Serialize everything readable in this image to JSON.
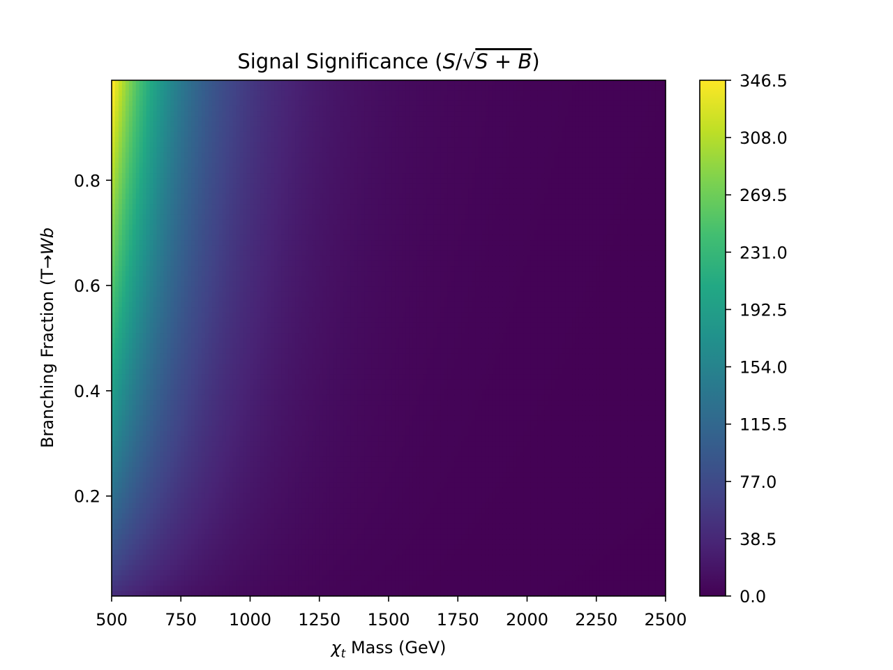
{
  "chart_data": {
    "type": "heatmap",
    "title": "Signal Significance (S/√S + B)",
    "title_parts": {
      "prefix": "Signal Significance (",
      "italic1": "S",
      "slash": "/√",
      "italic2": "S + B",
      "suffix": ")"
    },
    "xlabel": "χt Mass (GeV)",
    "xlabel_parts": {
      "symbol": "χ",
      "subscript": "t",
      "rest": " Mass (GeV)"
    },
    "ylabel": "Branching Fraction (T→Wb",
    "ylabel_parts": {
      "prefix": "Branching Fraction (T→",
      "italic": "Wb"
    },
    "xlim": [
      500,
      2500
    ],
    "ylim": [
      0.01,
      0.99
    ],
    "x_ticks": [
      500,
      750,
      1000,
      1250,
      1500,
      1750,
      2000,
      2250,
      2500
    ],
    "x_tick_labels": [
      "500",
      "750",
      "1000",
      "1250",
      "1500",
      "1750",
      "2000",
      "2250",
      "2500"
    ],
    "y_ticks": [
      0.2,
      0.4,
      0.6,
      0.8
    ],
    "y_tick_labels": [
      "0.2",
      "0.4",
      "0.6",
      "0.8"
    ],
    "colormap": "viridis",
    "colorbar": {
      "min": 0.0,
      "max": 346.5,
      "ticks": [
        0.0,
        38.5,
        77.0,
        115.5,
        154.0,
        192.5,
        231.0,
        269.5,
        308.0,
        346.5
      ],
      "tick_labels": [
        "0.0",
        "38.5",
        "77.0",
        "115.5",
        "154.0",
        "192.5",
        "231.0",
        "269.5",
        "308.0",
        "346.5"
      ]
    },
    "grid": false,
    "sample_values": [
      {
        "x": 500,
        "y": 0.99,
        "value": 346.5
      },
      {
        "x": 500,
        "y": 0.8,
        "value": 300
      },
      {
        "x": 500,
        "y": 0.6,
        "value": 250
      },
      {
        "x": 500,
        "y": 0.4,
        "value": 190
      },
      {
        "x": 500,
        "y": 0.2,
        "value": 120
      },
      {
        "x": 500,
        "y": 0.01,
        "value": 30
      },
      {
        "x": 750,
        "y": 0.99,
        "value": 195
      },
      {
        "x": 750,
        "y": 0.5,
        "value": 135
      },
      {
        "x": 750,
        "y": 0.01,
        "value": 15
      },
      {
        "x": 1000,
        "y": 0.99,
        "value": 60
      },
      {
        "x": 1000,
        "y": 0.2,
        "value": 30
      },
      {
        "x": 1500,
        "y": 0.99,
        "value": 30
      },
      {
        "x": 2000,
        "y": 0.99,
        "value": 15
      },
      {
        "x": 2500,
        "y": 0.99,
        "value": 5
      },
      {
        "x": 2500,
        "y": 0.01,
        "value": 0
      }
    ]
  }
}
